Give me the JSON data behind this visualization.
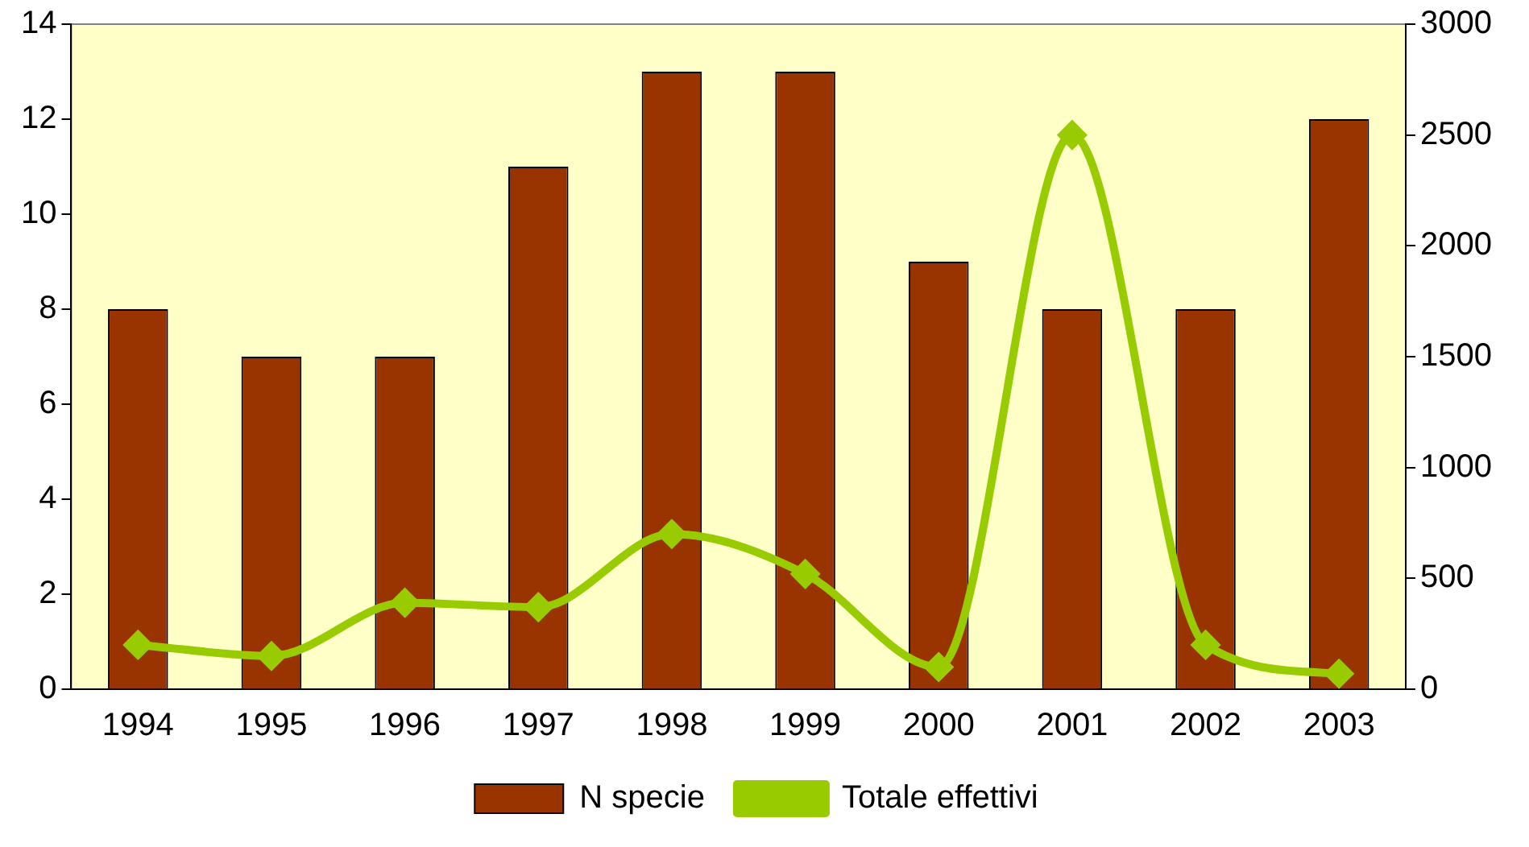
{
  "chart_data": {
    "type": "bar",
    "categories": [
      "1994",
      "1995",
      "1996",
      "1997",
      "1998",
      "1999",
      "2000",
      "2001",
      "2002",
      "2003"
    ],
    "series": [
      {
        "name": "N specie",
        "color": "#993300",
        "values": [
          8,
          7,
          7,
          11,
          13,
          13,
          9,
          8,
          8,
          12
        ]
      },
      {
        "name": "Totale effettivi",
        "type": "line",
        "axis": "y2",
        "color": "#99cc00",
        "marker": "diamond",
        "values": [
          200,
          150,
          390,
          370,
          700,
          520,
          100,
          2500,
          200,
          70
        ]
      }
    ],
    "ylim": [
      0,
      14
    ],
    "yticks": [
      0,
      2,
      4,
      6,
      8,
      10,
      12,
      14
    ],
    "y2lim": [
      0,
      3000
    ],
    "y2ticks": [
      0,
      500,
      1000,
      1500,
      2000,
      2500,
      3000
    ],
    "grid": false,
    "legend": "bottom"
  }
}
